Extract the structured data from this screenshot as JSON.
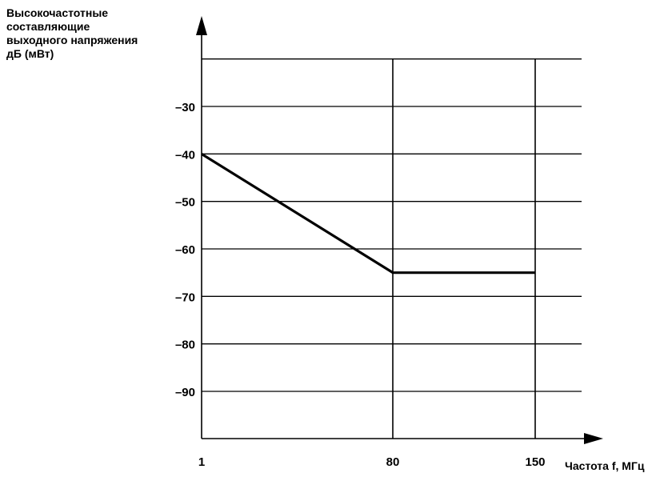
{
  "chart_data": {
    "type": "line",
    "ylabel": "Высокочастотные\nсоставляющие\nвыходного напряжения\nдБ (мВт)",
    "xlabel": "Частота f, МГц",
    "x_ticks": [
      {
        "label": "1",
        "value": 1
      },
      {
        "label": "80",
        "value": 80
      },
      {
        "label": "150",
        "value": 150
      }
    ],
    "y_ticks": [
      {
        "label": "–30",
        "value": -30
      },
      {
        "label": "–40",
        "value": -40
      },
      {
        "label": "–50",
        "value": -50
      },
      {
        "label": "–60",
        "value": -60
      },
      {
        "label": "–70",
        "value": -70
      },
      {
        "label": "–80",
        "value": -80
      },
      {
        "label": "–90",
        "value": -90
      }
    ],
    "ylim": [
      -100,
      -20
    ],
    "xlim": [
      1,
      150
    ],
    "grid": true,
    "series": [
      {
        "points": [
          [
            1,
            -40
          ],
          [
            80,
            -65
          ],
          [
            150,
            -65
          ]
        ]
      }
    ]
  }
}
